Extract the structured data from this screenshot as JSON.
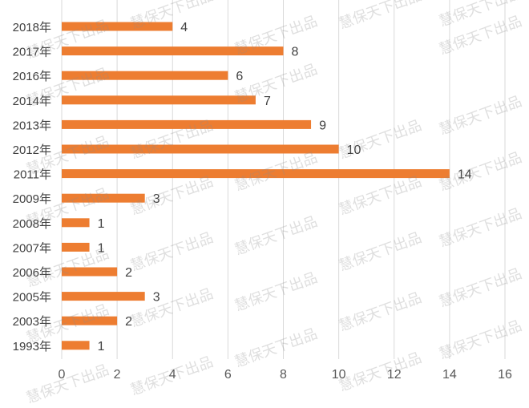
{
  "chart_data": {
    "type": "bar",
    "orientation": "horizontal",
    "title": "",
    "xlabel": "",
    "ylabel": "",
    "categories": [
      "2018年",
      "2017年",
      "2016年",
      "2014年",
      "2013年",
      "2012年",
      "2011年",
      "2009年",
      "2008年",
      "2007年",
      "2006年",
      "2005年",
      "2003年",
      "1993年"
    ],
    "values": [
      4,
      8,
      6,
      7,
      9,
      10,
      14,
      3,
      1,
      1,
      2,
      3,
      2,
      1
    ],
    "xlim": [
      0,
      16
    ],
    "xticks": [
      0,
      2,
      4,
      6,
      8,
      10,
      12,
      14,
      16
    ],
    "grid": true,
    "legend": "none",
    "bar_color": "#ED7D31",
    "data_labels": true
  },
  "watermark": "慧保天下出品"
}
